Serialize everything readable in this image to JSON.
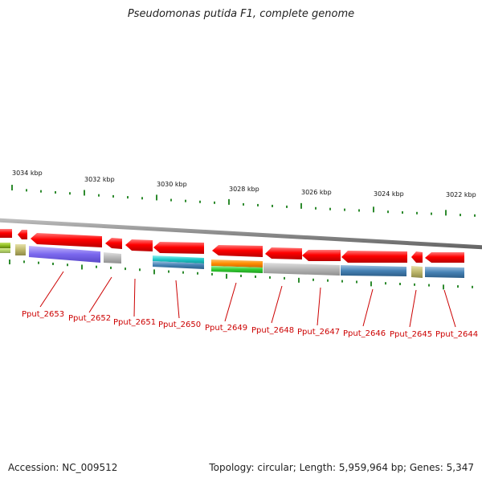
{
  "title": "Pseudomonas putida F1, complete genome",
  "footer": {
    "accession": "Accession: NC_009512",
    "summary": "Topology: circular; Length: 5,959,964 bp; Genes: 5,347"
  },
  "scale_labels": [
    "3034 kbp",
    "3032 kbp",
    "3030 kbp",
    "3028 kbp",
    "3026 kbp",
    "3024 kbp",
    "3022 kbp"
  ],
  "gene_labels": [
    "Pput_2653",
    "Pput_2652",
    "Pput_2651",
    "Pput_2650",
    "Pput_2649",
    "Pput_2648",
    "Pput_2647",
    "Pput_2646",
    "Pput_2645",
    "Pput_2644"
  ],
  "colors": {
    "gene": "#ff0000",
    "label": "#cc0000",
    "backbone": "#888888",
    "tick": "#2e8b2e",
    "purple": "#7b68ee",
    "gray": "#b0b0b0",
    "cyan": "#20c8c8",
    "steelblue": "#4682b4",
    "orange": "#ff8c00",
    "green": "#32cd32",
    "khaki": "#bdb76b",
    "olive": "#7fa020"
  }
}
